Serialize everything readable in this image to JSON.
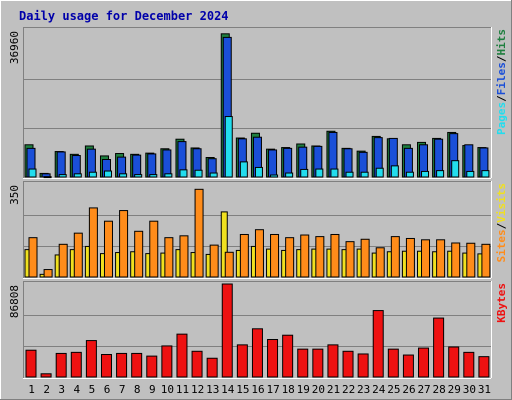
{
  "chart_data": {
    "type": "bar",
    "title": "Daily usage for December 2024",
    "categories": [
      "1",
      "2",
      "3",
      "4",
      "5",
      "6",
      "7",
      "8",
      "9",
      "10",
      "11",
      "12",
      "13",
      "14",
      "15",
      "16",
      "17",
      "18",
      "19",
      "20",
      "21",
      "22",
      "23",
      "24",
      "25",
      "26",
      "27",
      "28",
      "29",
      "30",
      "31"
    ],
    "weekend_days": [
      "1",
      "7",
      "8",
      "14",
      "15",
      "21",
      "22",
      "28",
      "29"
    ],
    "colors": {
      "hits": "#1f7f3f",
      "files": "#1a4fd8",
      "pages": "#22ddee",
      "visits": "#f0e020",
      "sites": "#ff8c1a",
      "kbytes": "#ee1111",
      "weekday_label": "#000000",
      "weekend_label": "#007f3f"
    },
    "panels": [
      {
        "name": "hits-files-pages",
        "max_label": "36960",
        "ylim": [
          0,
          36960
        ],
        "legend": [
          {
            "text": "Pages",
            "color": "#22ddee"
          },
          {
            "text": "Files",
            "color": "#1a4fd8"
          },
          {
            "text": "Hits",
            "color": "#1f7f3f"
          }
        ],
        "series": [
          {
            "name": "Hits",
            "values": [
              8100,
              900,
              6400,
              5700,
              7800,
              5300,
              5900,
              5700,
              6000,
              7100,
              9500,
              7300,
              4900,
              36000,
              9800,
              11000,
              7000,
              7400,
              8300,
              7800,
              11500,
              7200,
              6500,
              10200,
              9600,
              8100,
              8700,
              9700,
              11200,
              7900,
              7400
            ]
          },
          {
            "name": "Files",
            "values": [
              7200,
              800,
              6300,
              5400,
              7000,
              4400,
              5000,
              5500,
              5800,
              6800,
              8900,
              7100,
              4600,
              35100,
              9600,
              10000,
              6800,
              7200,
              7500,
              7700,
              11200,
              7100,
              6200,
              9900,
              9700,
              7200,
              8100,
              9500,
              10900,
              8100,
              7300
            ]
          },
          {
            "name": "Pages",
            "values": [
              2000,
              100,
              600,
              800,
              1200,
              1500,
              800,
              600,
              600,
              800,
              1800,
              1700,
              1000,
              15200,
              3800,
              2400,
              500,
              1000,
              1900,
              2000,
              2000,
              1200,
              1200,
              2200,
              2800,
              1200,
              1400,
              1600,
              4100,
              1400,
              1600
            ]
          }
        ]
      },
      {
        "name": "visits-sites",
        "max_label": "350",
        "ylim": [
          0,
          350
        ],
        "legend": [
          {
            "text": "Sites",
            "color": "#ff8c1a"
          },
          {
            "text": "Visits",
            "color": "#f0e020"
          }
        ],
        "series": [
          {
            "name": "Visits",
            "values": [
              103,
              10,
              83,
              103,
              115,
              88,
              92,
              95,
              88,
              90,
              103,
              92,
              85,
              245,
              100,
              115,
              105,
              100,
              103,
              105,
              105,
              103,
              105,
              90,
              95,
              97,
              97,
              95,
              97,
              90,
              87
            ]
          },
          {
            "name": "Sites",
            "values": [
              148,
              28,
              123,
              165,
              260,
              210,
              250,
              172,
              210,
              148,
              155,
              330,
              120,
              93,
              160,
              178,
              160,
              148,
              158,
              152,
              160,
              133,
              142,
              110,
              152,
              145,
              140,
              140,
              128,
              127,
              123
            ]
          }
        ]
      },
      {
        "name": "kbytes",
        "max_label": "86808",
        "ylim": [
          0,
          86808
        ],
        "legend": [
          {
            "text": "KBytes",
            "color": "#ee1111"
          }
        ],
        "series": [
          {
            "name": "KBytes",
            "values": [
              25000,
              3000,
              22000,
              23000,
              34000,
              21000,
              22000,
              22000,
              19500,
              29000,
              40000,
              24000,
              17500,
              86800,
              30000,
              45000,
              35000,
              39000,
              26000,
              26000,
              30000,
              24000,
              21500,
              62000,
              26000,
              20500,
              27000,
              55000,
              28000,
              23000,
              19000
            ]
          }
        ]
      }
    ]
  }
}
